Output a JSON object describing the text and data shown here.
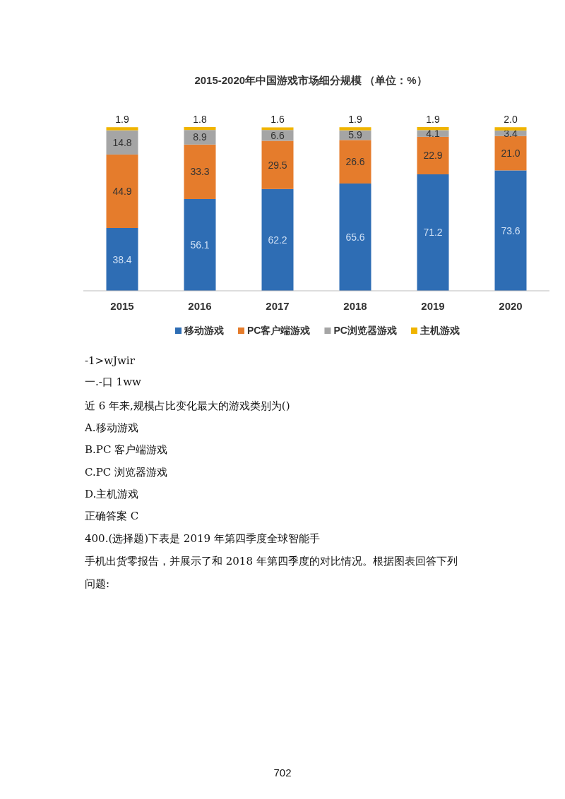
{
  "chart_data": {
    "type": "bar",
    "stacked": true,
    "title": "2015-2020年中国游戏市场细分规模 （单位：%）",
    "categories": [
      "2015",
      "2016",
      "2017",
      "2018",
      "2019",
      "2020"
    ],
    "series": [
      {
        "name": "移动游戏",
        "color": "#2e6db4",
        "values": [
          38.4,
          56.1,
          62.2,
          65.6,
          71.2,
          73.6
        ],
        "value_labels": [
          "38.4",
          "56.1",
          "62.2",
          "65.6",
          "71.2",
          "73.6"
        ]
      },
      {
        "name": "PC客户端游戏",
        "color": "#e57c2c",
        "values": [
          44.9,
          33.3,
          29.5,
          26.6,
          22.9,
          21.0
        ],
        "value_labels": [
          "44.9",
          "33.3",
          "29.5",
          "26.6",
          "22.9",
          "21.0"
        ]
      },
      {
        "name": "PC浏览器游戏",
        "color": "#a5a5a5",
        "values": [
          14.8,
          8.9,
          6.6,
          5.9,
          4.1,
          3.4
        ],
        "value_labels": [
          "14.8",
          "8.9",
          "6.6",
          "5.9",
          "4.1",
          "3.4"
        ]
      },
      {
        "name": "主机游戏",
        "color": "#f0b400",
        "values": [
          1.9,
          1.8,
          1.6,
          1.9,
          1.9,
          2.0
        ],
        "value_labels": [
          "1.9",
          "1.8",
          "1.6",
          "1.9",
          "1.9",
          "2.0"
        ]
      }
    ],
    "legend": "bottom",
    "annotations": [
      "-1>wJwir",
      "一.-口 1ww",
      "近 6 年来,规模占比变化最大的游戏类别为()",
      "A.移动游戏",
      "B.PC 客户端游戏",
      "C.PC 浏览器游戏",
      "D.主机游戏",
      "正确答案 C",
      "400.(选择题)下表是 2019 年第四季度全球智能手",
      "手机出货零报告，并展示了和 2018 年第四季度的对比情况。根据图表回答下列",
      "问题:",
      "702"
    ]
  }
}
